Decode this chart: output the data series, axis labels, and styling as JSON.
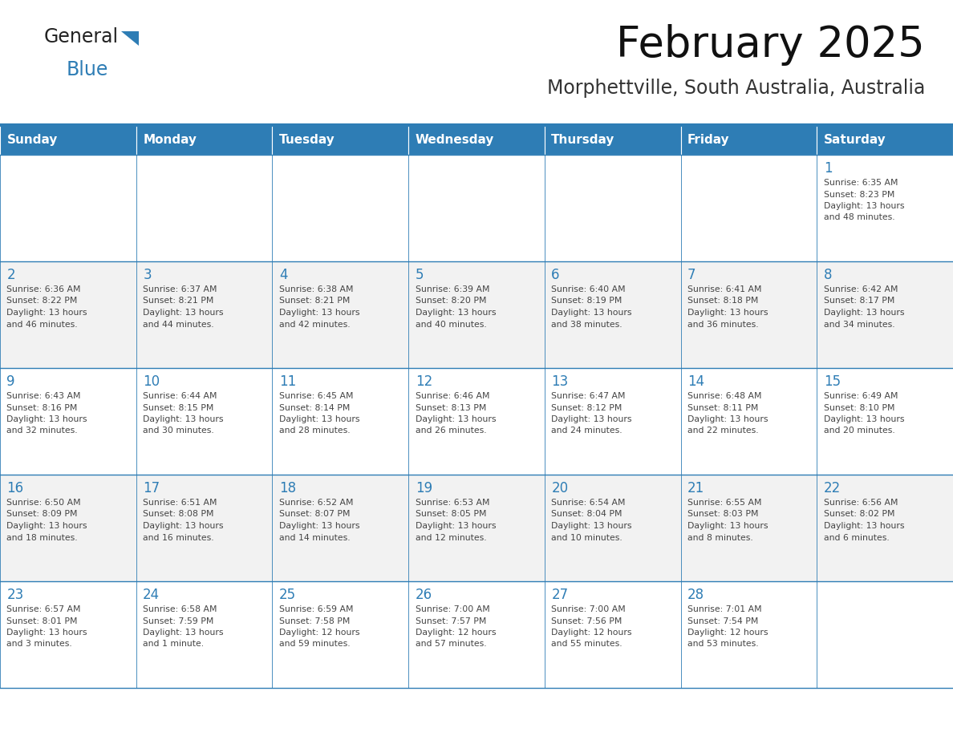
{
  "title": "February 2025",
  "subtitle": "Morphettville, South Australia, Australia",
  "days_of_week": [
    "Sunday",
    "Monday",
    "Tuesday",
    "Wednesday",
    "Thursday",
    "Friday",
    "Saturday"
  ],
  "header_bg": "#2E7DB5",
  "header_text": "#FFFFFF",
  "cell_bg_white": "#FFFFFF",
  "cell_bg_gray": "#F2F2F2",
  "border_color": "#2E7DB5",
  "separator_color": "#2E7DB5",
  "day_num_color": "#2E7DB5",
  "text_color": "#444444",
  "logo_general_color": "#222222",
  "logo_blue_color": "#2E7DB5",
  "weeks": [
    [
      {
        "day": null,
        "sunrise": null,
        "sunset": null,
        "daylight": null
      },
      {
        "day": null,
        "sunrise": null,
        "sunset": null,
        "daylight": null
      },
      {
        "day": null,
        "sunrise": null,
        "sunset": null,
        "daylight": null
      },
      {
        "day": null,
        "sunrise": null,
        "sunset": null,
        "daylight": null
      },
      {
        "day": null,
        "sunrise": null,
        "sunset": null,
        "daylight": null
      },
      {
        "day": null,
        "sunrise": null,
        "sunset": null,
        "daylight": null
      },
      {
        "day": 1,
        "sunrise": "6:35 AM",
        "sunset": "8:23 PM",
        "daylight": "13 hours\nand 48 minutes."
      }
    ],
    [
      {
        "day": 2,
        "sunrise": "6:36 AM",
        "sunset": "8:22 PM",
        "daylight": "13 hours\nand 46 minutes."
      },
      {
        "day": 3,
        "sunrise": "6:37 AM",
        "sunset": "8:21 PM",
        "daylight": "13 hours\nand 44 minutes."
      },
      {
        "day": 4,
        "sunrise": "6:38 AM",
        "sunset": "8:21 PM",
        "daylight": "13 hours\nand 42 minutes."
      },
      {
        "day": 5,
        "sunrise": "6:39 AM",
        "sunset": "8:20 PM",
        "daylight": "13 hours\nand 40 minutes."
      },
      {
        "day": 6,
        "sunrise": "6:40 AM",
        "sunset": "8:19 PM",
        "daylight": "13 hours\nand 38 minutes."
      },
      {
        "day": 7,
        "sunrise": "6:41 AM",
        "sunset": "8:18 PM",
        "daylight": "13 hours\nand 36 minutes."
      },
      {
        "day": 8,
        "sunrise": "6:42 AM",
        "sunset": "8:17 PM",
        "daylight": "13 hours\nand 34 minutes."
      }
    ],
    [
      {
        "day": 9,
        "sunrise": "6:43 AM",
        "sunset": "8:16 PM",
        "daylight": "13 hours\nand 32 minutes."
      },
      {
        "day": 10,
        "sunrise": "6:44 AM",
        "sunset": "8:15 PM",
        "daylight": "13 hours\nand 30 minutes."
      },
      {
        "day": 11,
        "sunrise": "6:45 AM",
        "sunset": "8:14 PM",
        "daylight": "13 hours\nand 28 minutes."
      },
      {
        "day": 12,
        "sunrise": "6:46 AM",
        "sunset": "8:13 PM",
        "daylight": "13 hours\nand 26 minutes."
      },
      {
        "day": 13,
        "sunrise": "6:47 AM",
        "sunset": "8:12 PM",
        "daylight": "13 hours\nand 24 minutes."
      },
      {
        "day": 14,
        "sunrise": "6:48 AM",
        "sunset": "8:11 PM",
        "daylight": "13 hours\nand 22 minutes."
      },
      {
        "day": 15,
        "sunrise": "6:49 AM",
        "sunset": "8:10 PM",
        "daylight": "13 hours\nand 20 minutes."
      }
    ],
    [
      {
        "day": 16,
        "sunrise": "6:50 AM",
        "sunset": "8:09 PM",
        "daylight": "13 hours\nand 18 minutes."
      },
      {
        "day": 17,
        "sunrise": "6:51 AM",
        "sunset": "8:08 PM",
        "daylight": "13 hours\nand 16 minutes."
      },
      {
        "day": 18,
        "sunrise": "6:52 AM",
        "sunset": "8:07 PM",
        "daylight": "13 hours\nand 14 minutes."
      },
      {
        "day": 19,
        "sunrise": "6:53 AM",
        "sunset": "8:05 PM",
        "daylight": "13 hours\nand 12 minutes."
      },
      {
        "day": 20,
        "sunrise": "6:54 AM",
        "sunset": "8:04 PM",
        "daylight": "13 hours\nand 10 minutes."
      },
      {
        "day": 21,
        "sunrise": "6:55 AM",
        "sunset": "8:03 PM",
        "daylight": "13 hours\nand 8 minutes."
      },
      {
        "day": 22,
        "sunrise": "6:56 AM",
        "sunset": "8:02 PM",
        "daylight": "13 hours\nand 6 minutes."
      }
    ],
    [
      {
        "day": 23,
        "sunrise": "6:57 AM",
        "sunset": "8:01 PM",
        "daylight": "13 hours\nand 3 minutes."
      },
      {
        "day": 24,
        "sunrise": "6:58 AM",
        "sunset": "7:59 PM",
        "daylight": "13 hours\nand 1 minute."
      },
      {
        "day": 25,
        "sunrise": "6:59 AM",
        "sunset": "7:58 PM",
        "daylight": "12 hours\nand 59 minutes."
      },
      {
        "day": 26,
        "sunrise": "7:00 AM",
        "sunset": "7:57 PM",
        "daylight": "12 hours\nand 57 minutes."
      },
      {
        "day": 27,
        "sunrise": "7:00 AM",
        "sunset": "7:56 PM",
        "daylight": "12 hours\nand 55 minutes."
      },
      {
        "day": 28,
        "sunrise": "7:01 AM",
        "sunset": "7:54 PM",
        "daylight": "12 hours\nand 53 minutes."
      },
      {
        "day": null,
        "sunrise": null,
        "sunset": null,
        "daylight": null
      }
    ]
  ]
}
